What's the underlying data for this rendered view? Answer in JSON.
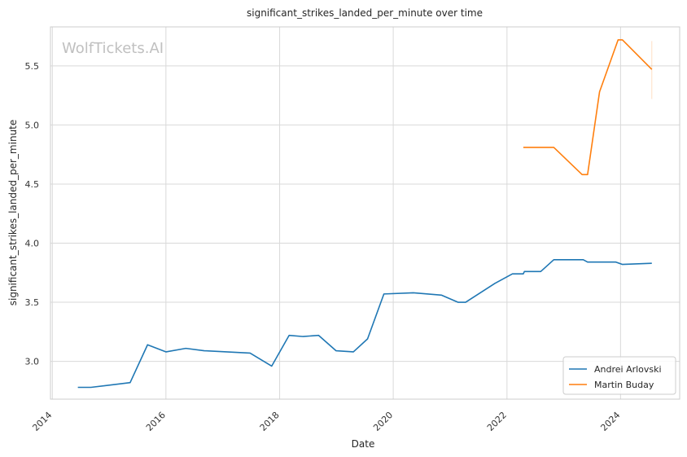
{
  "chart_data": {
    "type": "line",
    "title": "significant_strikes_landed_per_minute over time",
    "xlabel": "Date",
    "ylabel": "significant_strikes_landed_per_minute",
    "watermark": "WolfTickets.AI",
    "x_ticks": [
      "2014",
      "2016",
      "2018",
      "2020",
      "2022",
      "2024"
    ],
    "y_ticks": [
      "3.0",
      "3.5",
      "4.0",
      "4.5",
      "5.0",
      "5.5"
    ],
    "xlim": [
      "2013-12-20",
      "2025-01-15"
    ],
    "ylim": [
      2.68,
      5.83
    ],
    "grid": true,
    "legend_position": "lower-right",
    "series": [
      {
        "name": "Andrei Arlovski",
        "color": "#1f77b4",
        "points": [
          [
            "2014-06-14",
            2.78
          ],
          [
            "2014-09-06",
            2.78
          ],
          [
            "2015-05-16",
            2.82
          ],
          [
            "2015-09-05",
            3.14
          ],
          [
            "2016-01-02",
            3.08
          ],
          [
            "2016-05-08",
            3.11
          ],
          [
            "2016-09-03",
            3.09
          ],
          [
            "2017-06-25",
            3.07
          ],
          [
            "2017-11-11",
            2.96
          ],
          [
            "2018-03-03",
            3.22
          ],
          [
            "2018-06-01",
            3.21
          ],
          [
            "2018-09-08",
            3.22
          ],
          [
            "2018-12-29",
            3.09
          ],
          [
            "2019-04-20",
            3.08
          ],
          [
            "2019-07-20",
            3.19
          ],
          [
            "2019-11-02",
            3.57
          ],
          [
            "2020-05-09",
            3.58
          ],
          [
            "2020-11-07",
            3.56
          ],
          [
            "2021-02-20",
            3.5
          ],
          [
            "2021-04-10",
            3.5
          ],
          [
            "2021-10-16",
            3.66
          ],
          [
            "2022-02-05",
            3.74
          ],
          [
            "2022-04-16",
            3.74
          ],
          [
            "2022-04-23",
            3.76
          ],
          [
            "2022-08-06",
            3.76
          ],
          [
            "2022-10-29",
            3.86
          ],
          [
            "2023-05-06",
            3.86
          ],
          [
            "2023-06-03",
            3.84
          ],
          [
            "2023-12-02",
            3.84
          ],
          [
            "2024-01-13",
            3.82
          ],
          [
            "2024-07-20",
            3.83
          ]
        ]
      },
      {
        "name": "Martin Buday",
        "color": "#ff7f0e",
        "points": [
          [
            "2022-04-16",
            4.81
          ],
          [
            "2022-10-29",
            4.81
          ],
          [
            "2023-04-29",
            4.58
          ],
          [
            "2023-06-03",
            4.58
          ],
          [
            "2023-08-19",
            5.28
          ],
          [
            "2023-12-16",
            5.72
          ],
          [
            "2024-01-13",
            5.72
          ],
          [
            "2024-07-20",
            5.47
          ]
        ]
      }
    ],
    "error_band": {
      "series": "Martin Buday",
      "x": "2024-07-20",
      "low": 5.22,
      "high": 5.71
    }
  }
}
